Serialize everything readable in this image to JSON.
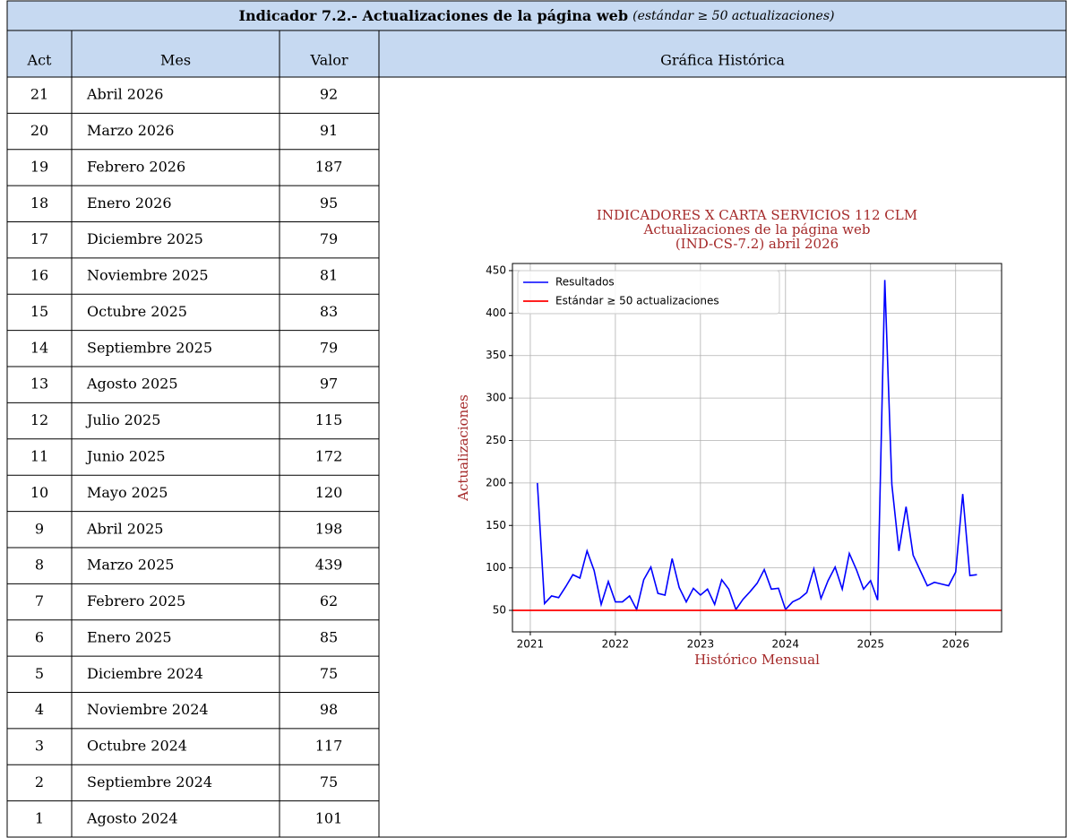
{
  "header": {
    "title": "Indicador 7.2.- Actualizaciones de la página web",
    "subtitle": "(estándar ≥ 50 actualizaciones)"
  },
  "table": {
    "columns": [
      "Act",
      "Mes",
      "Valor",
      "Gráfica Histórica"
    ],
    "rows": [
      [
        "21",
        "Abril 2026",
        "92"
      ],
      [
        "20",
        "Marzo 2026",
        "91"
      ],
      [
        "19",
        "Febrero 2026",
        "187"
      ],
      [
        "18",
        "Enero 2026",
        "95"
      ],
      [
        "17",
        "Diciembre 2025",
        "79"
      ],
      [
        "16",
        "Noviembre 2025",
        "81"
      ],
      [
        "15",
        "Octubre 2025",
        "83"
      ],
      [
        "14",
        "Septiembre 2025",
        "79"
      ],
      [
        "13",
        "Agosto 2025",
        "97"
      ],
      [
        "12",
        "Julio 2025",
        "115"
      ],
      [
        "11",
        "Junio 2025",
        "172"
      ],
      [
        "10",
        "Mayo 2025",
        "120"
      ],
      [
        "9",
        "Abril 2025",
        "198"
      ],
      [
        "8",
        "Marzo 2025",
        "439"
      ],
      [
        "7",
        "Febrero 2025",
        "62"
      ],
      [
        "6",
        "Enero 2025",
        "85"
      ],
      [
        "5",
        "Diciembre 2024",
        "75"
      ],
      [
        "4",
        "Noviembre 2024",
        "98"
      ],
      [
        "3",
        "Octubre 2024",
        "117"
      ],
      [
        "2",
        "Septiembre 2024",
        "75"
      ],
      [
        "1",
        "Agosto 2024",
        "101"
      ]
    ]
  },
  "chart": {
    "type": "line",
    "title": [
      "INDICADORES X CARTA SERVICIOS 112 CLM",
      "Actualizaciones de la página web",
      "(IND-CS-7.2) abril 2026"
    ],
    "xlabel": "Histórico Mensual",
    "ylabel": "Actualizaciones",
    "x": [
      2021.083,
      2021.167,
      2021.25,
      2021.333,
      2021.417,
      2021.5,
      2021.583,
      2021.667,
      2021.75,
      2021.833,
      2021.917,
      2022.0,
      2022.083,
      2022.167,
      2022.25,
      2022.333,
      2022.417,
      2022.5,
      2022.583,
      2022.667,
      2022.75,
      2022.833,
      2022.917,
      2023.0,
      2023.083,
      2023.167,
      2023.25,
      2023.333,
      2023.417,
      2023.5,
      2023.583,
      2023.667,
      2023.75,
      2023.833,
      2023.917,
      2024.0,
      2024.083,
      2024.167,
      2024.25,
      2024.333,
      2024.417,
      2024.5,
      2024.583,
      2024.667,
      2024.75,
      2024.833,
      2024.917,
      2025.0,
      2025.083,
      2025.167,
      2025.25,
      2025.333,
      2025.417,
      2025.5,
      2025.583,
      2025.667,
      2025.75,
      2025.833,
      2025.917,
      2026.0,
      2026.083,
      2026.167,
      2026.25
    ],
    "series": [
      {
        "name": "Resultados",
        "color": "#0000ff",
        "values": [
          200,
          58,
          67,
          65,
          78,
          92,
          88,
          120,
          97,
          57,
          84,
          60,
          60,
          67,
          51,
          86,
          101,
          70,
          68,
          111,
          77,
          60,
          76,
          68,
          75,
          57,
          86,
          75,
          51,
          63,
          72,
          82,
          98,
          75,
          76,
          51,
          60,
          64,
          71,
          99,
          64,
          85,
          101,
          75,
          117,
          98,
          75,
          85,
          62,
          439,
          198,
          120,
          172,
          115,
          97,
          79,
          83,
          81,
          79,
          95,
          187,
          91,
          92
        ]
      }
    ],
    "standard": {
      "name": "Estándar ≥ 50 actualizaciones",
      "color": "#ff0000",
      "value": 50
    },
    "xlim": [
      2020.79,
      2026.54
    ],
    "ylim": [
      24.7,
      458.4
    ],
    "xticks": [
      2021,
      2022,
      2023,
      2024,
      2025,
      2026
    ],
    "yticks": [
      50,
      100,
      150,
      200,
      250,
      300,
      350,
      400,
      450
    ],
    "grid": true,
    "legend": "upper left"
  }
}
